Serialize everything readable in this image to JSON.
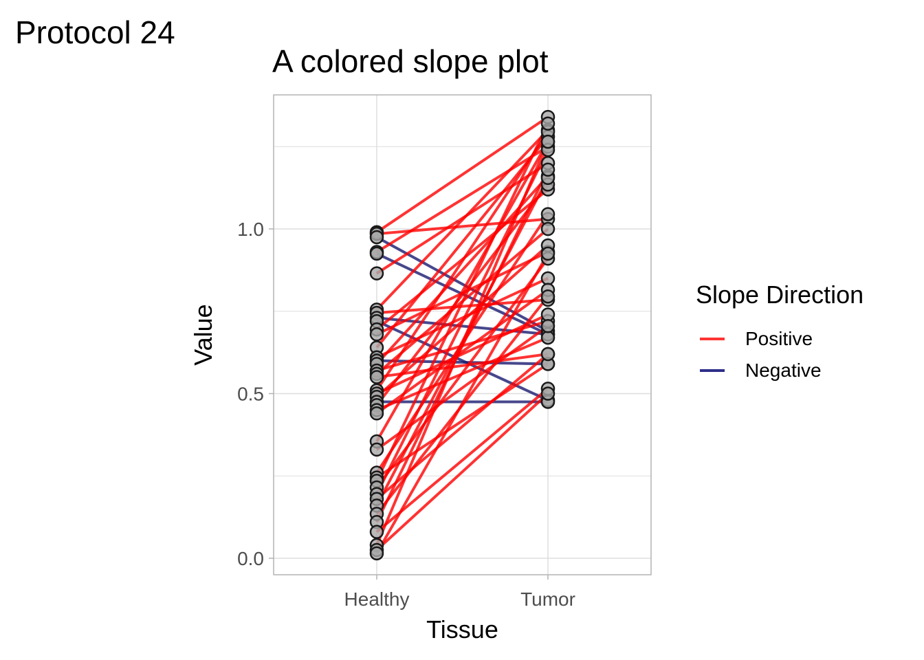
{
  "protocol_label": "Protocol 24",
  "chart_data": {
    "type": "line",
    "subtype": "slope",
    "title": "A colored slope plot",
    "xlabel": "Tissue",
    "ylabel": "Value",
    "categories": [
      "Healthy",
      "Tumor"
    ],
    "ylim": [
      -0.05,
      1.41
    ],
    "yticks": [
      0.0,
      0.5,
      1.0
    ],
    "ytick_labels": [
      "0.0",
      "0.5",
      "1.0"
    ],
    "grid": true,
    "legend": {
      "title": "Slope Direction",
      "position": "right",
      "entries": [
        {
          "label": "Positive",
          "color": "#ff0000"
        },
        {
          "label": "Negative",
          "color": "#191970"
        }
      ]
    },
    "colors": {
      "Positive": "#ff0000",
      "Negative": "#191970",
      "point_fill": "#a9a9a9",
      "point_stroke": "#1a1a1a"
    },
    "pairs": [
      {
        "healthy": 0.99,
        "tumor": 1.34,
        "direction": "Positive"
      },
      {
        "healthy": 0.985,
        "tumor": 1.03,
        "direction": "Positive"
      },
      {
        "healthy": 0.975,
        "tumor": 0.69,
        "direction": "Negative"
      },
      {
        "healthy": 0.93,
        "tumor": 1.25,
        "direction": "Positive"
      },
      {
        "healthy": 0.925,
        "tumor": 0.68,
        "direction": "Negative"
      },
      {
        "healthy": 0.865,
        "tumor": 1.2,
        "direction": "Positive"
      },
      {
        "healthy": 0.755,
        "tumor": 1.3,
        "direction": "Positive"
      },
      {
        "healthy": 0.745,
        "tumor": 0.785,
        "direction": "Positive"
      },
      {
        "healthy": 0.73,
        "tumor": 0.68,
        "direction": "Negative"
      },
      {
        "healthy": 0.72,
        "tumor": 0.48,
        "direction": "Negative"
      },
      {
        "healthy": 0.695,
        "tumor": 1.12,
        "direction": "Positive"
      },
      {
        "healthy": 0.68,
        "tumor": 0.93,
        "direction": "Positive"
      },
      {
        "healthy": 0.64,
        "tumor": 1.28,
        "direction": "Positive"
      },
      {
        "healthy": 0.61,
        "tumor": 0.85,
        "direction": "Positive"
      },
      {
        "healthy": 0.6,
        "tumor": 0.59,
        "direction": "Negative"
      },
      {
        "healthy": 0.59,
        "tumor": 1.16,
        "direction": "Positive"
      },
      {
        "healthy": 0.57,
        "tumor": 0.72,
        "direction": "Positive"
      },
      {
        "healthy": 0.56,
        "tumor": 1.0,
        "direction": "Positive"
      },
      {
        "healthy": 0.55,
        "tumor": 0.62,
        "direction": "Positive"
      },
      {
        "healthy": 0.51,
        "tumor": 1.295,
        "direction": "Positive"
      },
      {
        "healthy": 0.5,
        "tumor": 0.74,
        "direction": "Positive"
      },
      {
        "healthy": 0.49,
        "tumor": 0.95,
        "direction": "Positive"
      },
      {
        "healthy": 0.475,
        "tumor": 0.475,
        "direction": "Negative"
      },
      {
        "healthy": 0.465,
        "tumor": 1.135,
        "direction": "Positive"
      },
      {
        "healthy": 0.45,
        "tumor": 0.67,
        "direction": "Positive"
      },
      {
        "healthy": 0.44,
        "tumor": 0.815,
        "direction": "Positive"
      },
      {
        "healthy": 0.355,
        "tumor": 1.265,
        "direction": "Positive"
      },
      {
        "healthy": 0.33,
        "tumor": 0.705,
        "direction": "Positive"
      },
      {
        "healthy": 0.26,
        "tumor": 1.045,
        "direction": "Positive"
      },
      {
        "healthy": 0.245,
        "tumor": 0.59,
        "direction": "Positive"
      },
      {
        "healthy": 0.235,
        "tumor": 1.32,
        "direction": "Positive"
      },
      {
        "healthy": 0.215,
        "tumor": 0.91,
        "direction": "Positive"
      },
      {
        "healthy": 0.195,
        "tumor": 1.24,
        "direction": "Positive"
      },
      {
        "healthy": 0.18,
        "tumor": 0.62,
        "direction": "Positive"
      },
      {
        "healthy": 0.16,
        "tumor": 1.155,
        "direction": "Positive"
      },
      {
        "healthy": 0.135,
        "tumor": 0.795,
        "direction": "Positive"
      },
      {
        "healthy": 0.11,
        "tumor": 1.18,
        "direction": "Positive"
      },
      {
        "healthy": 0.08,
        "tumor": 0.515,
        "direction": "Positive"
      },
      {
        "healthy": 0.04,
        "tumor": 1.265,
        "direction": "Positive"
      },
      {
        "healthy": 0.025,
        "tumor": 0.5,
        "direction": "Positive"
      },
      {
        "healthy": 0.015,
        "tumor": 0.925,
        "direction": "Positive"
      }
    ]
  }
}
